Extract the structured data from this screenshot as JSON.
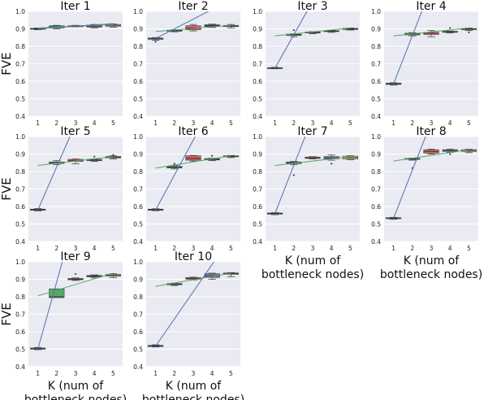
{
  "figure": {
    "ylabel": "FVE",
    "xlabel_line1": "K (num of",
    "xlabel_line2": "bottleneck nodes)"
  },
  "colors": {
    "plot_bg": "#eaeaf2",
    "grid": "#ffffff",
    "linear_fit": "#4c72b0",
    "log_fit": "#55a868",
    "box_blue": "#6a8cc0",
    "box_green": "#55a868",
    "box_red": "#d65f5f",
    "box_purple": "#8172b2",
    "box_gold": "#ccb974",
    "box_cyan": "#64b5cd",
    "median": "#333333"
  },
  "chart_data": [
    {
      "type": "box",
      "title": "Iter 1",
      "categories": [
        "1",
        "2",
        "3",
        "4",
        "5"
      ],
      "ylim": [
        0.4,
        1.0
      ],
      "yticks": [
        "0.4",
        "0.5",
        "0.6",
        "0.7",
        "0.8",
        "0.9",
        "1.0"
      ],
      "boxes": [
        {
          "q1": 0.898,
          "median": 0.9,
          "q3": 0.903,
          "whislo": 0.895,
          "whishi": 0.905,
          "color": "blue"
        },
        {
          "q1": 0.905,
          "median": 0.912,
          "q3": 0.918,
          "whislo": 0.9,
          "whishi": 0.92,
          "color": "green"
        },
        {
          "q1": 0.913,
          "median": 0.915,
          "q3": 0.918,
          "whislo": 0.912,
          "whishi": 0.92,
          "color": "red"
        },
        {
          "q1": 0.91,
          "median": 0.915,
          "q3": 0.922,
          "whislo": 0.905,
          "whishi": 0.925,
          "color": "purple"
        },
        {
          "q1": 0.915,
          "median": 0.92,
          "q3": 0.925,
          "whislo": 0.91,
          "whishi": 0.928,
          "color": "gold"
        }
      ],
      "linear_fit": [
        [
          1,
          0.9
        ],
        [
          5,
          0.93
        ]
      ],
      "log_fit": [
        [
          1,
          0.905
        ],
        [
          5,
          0.925
        ]
      ]
    },
    {
      "type": "box",
      "title": "Iter 2",
      "categories": [
        "1",
        "2",
        "3",
        "4",
        "5"
      ],
      "ylim": [
        0.4,
        1.0
      ],
      "yticks": [
        "0.4",
        "0.5",
        "0.6",
        "0.7",
        "0.8",
        "0.9",
        "1.0"
      ],
      "boxes": [
        {
          "q1": 0.84,
          "median": 0.843,
          "q3": 0.848,
          "whislo": 0.835,
          "whishi": 0.85,
          "color": "blue",
          "outliers": [
            0.826
          ]
        },
        {
          "q1": 0.886,
          "median": 0.89,
          "q3": 0.893,
          "whislo": 0.883,
          "whishi": 0.895,
          "color": "green"
        },
        {
          "q1": 0.895,
          "median": 0.905,
          "q3": 0.918,
          "whislo": 0.888,
          "whishi": 0.925,
          "color": "red"
        },
        {
          "q1": 0.913,
          "median": 0.918,
          "q3": 0.924,
          "whislo": 0.908,
          "whishi": 0.927,
          "color": "purple"
        },
        {
          "q1": 0.913,
          "median": 0.916,
          "q3": 0.92,
          "whislo": 0.905,
          "whishi": 0.925,
          "color": "gold"
        }
      ],
      "linear_fit": [
        [
          1,
          0.845
        ],
        [
          3.8,
          1.0
        ]
      ],
      "log_fit": [
        [
          1,
          0.885
        ],
        [
          5,
          0.92
        ]
      ]
    },
    {
      "type": "box",
      "title": "Iter 3",
      "categories": [
        "1",
        "2",
        "3",
        "4",
        "5"
      ],
      "ylim": [
        0.4,
        1.0
      ],
      "yticks": [
        "0.4",
        "0.5",
        "0.6",
        "0.7",
        "0.8",
        "0.9",
        "1.0"
      ],
      "boxes": [
        {
          "q1": 0.673,
          "median": 0.675,
          "q3": 0.678,
          "whislo": 0.672,
          "whishi": 0.68,
          "color": "blue"
        },
        {
          "q1": 0.862,
          "median": 0.866,
          "q3": 0.87,
          "whislo": 0.855,
          "whishi": 0.872,
          "color": "green",
          "outliers": [
            0.893
          ]
        },
        {
          "q1": 0.876,
          "median": 0.879,
          "q3": 0.882,
          "whislo": 0.872,
          "whishi": 0.884,
          "color": "red"
        },
        {
          "q1": 0.884,
          "median": 0.887,
          "q3": 0.89,
          "whislo": 0.88,
          "whishi": 0.892,
          "color": "purple"
        },
        {
          "q1": 0.896,
          "median": 0.9,
          "q3": 0.903,
          "whislo": 0.893,
          "whishi": 0.905,
          "color": "gold"
        }
      ],
      "linear_fit": [
        [
          1,
          0.675
        ],
        [
          2.7,
          1.0
        ]
      ],
      "log_fit": [
        [
          1,
          0.86
        ],
        [
          5,
          0.905
        ]
      ]
    },
    {
      "type": "box",
      "title": "Iter 4",
      "categories": [
        "1",
        "2",
        "3",
        "4",
        "5"
      ],
      "ylim": [
        0.4,
        1.0
      ],
      "yticks": [
        "0.4",
        "0.5",
        "0.6",
        "0.7",
        "0.8",
        "0.9",
        "1.0"
      ],
      "boxes": [
        {
          "q1": 0.582,
          "median": 0.585,
          "q3": 0.59,
          "whislo": 0.578,
          "whishi": 0.592,
          "color": "blue"
        },
        {
          "q1": 0.865,
          "median": 0.87,
          "q3": 0.875,
          "whislo": 0.86,
          "whishi": 0.878,
          "color": "green"
        },
        {
          "q1": 0.868,
          "median": 0.874,
          "q3": 0.88,
          "whislo": 0.855,
          "whishi": 0.89,
          "color": "red"
        },
        {
          "q1": 0.88,
          "median": 0.883,
          "q3": 0.886,
          "whislo": 0.876,
          "whishi": 0.888,
          "color": "purple",
          "outliers": [
            0.905
          ]
        },
        {
          "q1": 0.895,
          "median": 0.898,
          "q3": 0.902,
          "whislo": 0.89,
          "whishi": 0.905,
          "color": "gold",
          "outliers": [
            0.88
          ]
        }
      ],
      "linear_fit": [
        [
          1,
          0.585
        ],
        [
          2.5,
          1.0
        ]
      ],
      "log_fit": [
        [
          1,
          0.86
        ],
        [
          5,
          0.905
        ]
      ]
    },
    {
      "type": "box",
      "title": "Iter 5",
      "categories": [
        "1",
        "2",
        "3",
        "4",
        "5"
      ],
      "ylim": [
        0.4,
        1.0
      ],
      "yticks": [
        "0.4",
        "0.5",
        "0.6",
        "0.7",
        "0.8",
        "0.9",
        "1.0"
      ],
      "boxes": [
        {
          "q1": 0.578,
          "median": 0.582,
          "q3": 0.585,
          "whislo": 0.575,
          "whishi": 0.588,
          "color": "blue"
        },
        {
          "q1": 0.846,
          "median": 0.85,
          "q3": 0.855,
          "whislo": 0.84,
          "whishi": 0.862,
          "color": "green"
        },
        {
          "q1": 0.858,
          "median": 0.862,
          "q3": 0.87,
          "whislo": 0.845,
          "whishi": 0.872,
          "color": "red"
        },
        {
          "q1": 0.862,
          "median": 0.866,
          "q3": 0.87,
          "whislo": 0.858,
          "whishi": 0.872,
          "color": "purple",
          "outliers": [
            0.885
          ]
        },
        {
          "q1": 0.878,
          "median": 0.882,
          "q3": 0.887,
          "whislo": 0.872,
          "whishi": 0.89,
          "color": "gold",
          "outliers": [
            0.895
          ]
        }
      ],
      "linear_fit": [
        [
          1,
          0.58
        ],
        [
          2.7,
          1.0
        ]
      ],
      "log_fit": [
        [
          1,
          0.835
        ],
        [
          5,
          0.885
        ]
      ]
    },
    {
      "type": "box",
      "title": "Iter 6",
      "categories": [
        "1",
        "2",
        "3",
        "4",
        "5"
      ],
      "ylim": [
        0.4,
        1.0
      ],
      "yticks": [
        "0.4",
        "0.5",
        "0.6",
        "0.7",
        "0.8",
        "0.9",
        "1.0"
      ],
      "boxes": [
        {
          "q1": 0.578,
          "median": 0.582,
          "q3": 0.585,
          "whislo": 0.576,
          "whishi": 0.587,
          "color": "blue"
        },
        {
          "q1": 0.82,
          "median": 0.825,
          "q3": 0.83,
          "whislo": 0.815,
          "whishi": 0.835,
          "color": "green",
          "outliers": [
            0.845
          ]
        },
        {
          "q1": 0.865,
          "median": 0.875,
          "q3": 0.89,
          "whislo": 0.86,
          "whishi": 0.892,
          "color": "red"
        },
        {
          "q1": 0.866,
          "median": 0.87,
          "q3": 0.874,
          "whislo": 0.862,
          "whishi": 0.876,
          "color": "purple",
          "outliers": [
            0.89
          ]
        },
        {
          "q1": 0.884,
          "median": 0.887,
          "q3": 0.89,
          "whislo": 0.88,
          "whishi": 0.892,
          "color": "gold"
        }
      ],
      "linear_fit": [
        [
          1,
          0.58
        ],
        [
          3.1,
          1.0
        ]
      ],
      "log_fit": [
        [
          1,
          0.82
        ],
        [
          5,
          0.89
        ]
      ]
    },
    {
      "type": "box",
      "title": "Iter 7",
      "categories": [
        "1",
        "2",
        "3",
        "4",
        "5"
      ],
      "ylim": [
        0.4,
        1.0
      ],
      "yticks": [
        "0.4",
        "0.5",
        "0.6",
        "0.7",
        "0.8",
        "0.9",
        "1.0"
      ],
      "boxes": [
        {
          "q1": 0.556,
          "median": 0.56,
          "q3": 0.563,
          "whislo": 0.553,
          "whishi": 0.565,
          "color": "blue"
        },
        {
          "q1": 0.845,
          "median": 0.85,
          "q3": 0.855,
          "whislo": 0.84,
          "whishi": 0.858,
          "color": "green",
          "outliers": [
            0.78
          ]
        },
        {
          "q1": 0.875,
          "median": 0.878,
          "q3": 0.883,
          "whislo": 0.872,
          "whishi": 0.885,
          "color": "red"
        },
        {
          "q1": 0.873,
          "median": 0.878,
          "q3": 0.886,
          "whislo": 0.865,
          "whishi": 0.895,
          "color": "purple",
          "outliers": [
            0.845
          ]
        },
        {
          "q1": 0.872,
          "median": 0.88,
          "q3": 0.888,
          "whislo": 0.868,
          "whishi": 0.89,
          "color": "gold"
        }
      ],
      "linear_fit": [
        [
          1,
          0.56
        ],
        [
          2.6,
          1.0
        ]
      ],
      "log_fit": [
        [
          1,
          0.835
        ],
        [
          5,
          0.885
        ]
      ]
    },
    {
      "type": "box",
      "title": "Iter 8",
      "categories": [
        "1",
        "2",
        "3",
        "4",
        "5"
      ],
      "ylim": [
        0.4,
        1.0
      ],
      "yticks": [
        "0.4",
        "0.5",
        "0.6",
        "0.7",
        "0.8",
        "0.9",
        "1.0"
      ],
      "boxes": [
        {
          "q1": 0.53,
          "median": 0.533,
          "q3": 0.536,
          "whislo": 0.527,
          "whishi": 0.538,
          "color": "blue"
        },
        {
          "q1": 0.87,
          "median": 0.872,
          "q3": 0.875,
          "whislo": 0.865,
          "whishi": 0.877,
          "color": "green",
          "outliers": [
            0.82
          ]
        },
        {
          "q1": 0.905,
          "median": 0.915,
          "q3": 0.925,
          "whislo": 0.9,
          "whishi": 0.928,
          "color": "red"
        },
        {
          "q1": 0.915,
          "median": 0.92,
          "q3": 0.925,
          "whislo": 0.91,
          "whishi": 0.928,
          "color": "purple",
          "outliers": [
            0.9
          ]
        },
        {
          "q1": 0.915,
          "median": 0.92,
          "q3": 0.925,
          "whislo": 0.908,
          "whishi": 0.928,
          "color": "gold"
        }
      ],
      "linear_fit": [
        [
          1,
          0.533
        ],
        [
          2.7,
          1.0
        ]
      ],
      "log_fit": [
        [
          1,
          0.86
        ],
        [
          5,
          0.925
        ]
      ]
    },
    {
      "type": "box",
      "title": "Iter 9",
      "categories": [
        "1",
        "2",
        "3",
        "4",
        "5"
      ],
      "ylim": [
        0.4,
        1.0
      ],
      "yticks": [
        "0.4",
        "0.5",
        "0.6",
        "0.7",
        "0.8",
        "0.9",
        "1.0"
      ],
      "xlabel": "K (num of bottleneck nodes)",
      "boxes": [
        {
          "q1": 0.5,
          "median": 0.503,
          "q3": 0.507,
          "whislo": 0.497,
          "whishi": 0.51,
          "color": "blue"
        },
        {
          "q1": 0.795,
          "median": 0.8,
          "q3": 0.845,
          "whislo": 0.795,
          "whishi": 0.845,
          "color": "green"
        },
        {
          "q1": 0.897,
          "median": 0.9,
          "q3": 0.905,
          "whislo": 0.893,
          "whishi": 0.908,
          "color": "red",
          "outliers": [
            0.93
          ]
        },
        {
          "q1": 0.913,
          "median": 0.918,
          "q3": 0.922,
          "whislo": 0.908,
          "whishi": 0.925,
          "color": "purple"
        },
        {
          "q1": 0.918,
          "median": 0.922,
          "q3": 0.928,
          "whislo": 0.91,
          "whishi": 0.932,
          "color": "gold"
        }
      ],
      "linear_fit": [
        [
          1,
          0.5
        ],
        [
          2.3,
          1.0
        ]
      ],
      "log_fit": [
        [
          1,
          0.805
        ],
        [
          5,
          0.935
        ]
      ]
    },
    {
      "type": "box",
      "title": "Iter 10",
      "categories": [
        "1",
        "2",
        "3",
        "4",
        "5"
      ],
      "ylim": [
        0.4,
        1.0
      ],
      "yticks": [
        "0.4",
        "0.5",
        "0.6",
        "0.7",
        "0.8",
        "0.9",
        "1.0"
      ],
      "xlabel": "K (num of bottleneck nodes)",
      "boxes": [
        {
          "q1": 0.515,
          "median": 0.518,
          "q3": 0.522,
          "whislo": 0.513,
          "whishi": 0.525,
          "color": "blue"
        },
        {
          "q1": 0.868,
          "median": 0.872,
          "q3": 0.876,
          "whislo": 0.864,
          "whishi": 0.878,
          "color": "green"
        },
        {
          "q1": 0.9,
          "median": 0.905,
          "q3": 0.91,
          "whislo": 0.896,
          "whishi": 0.912,
          "color": "red"
        },
        {
          "q1": 0.91,
          "median": 0.92,
          "q3": 0.932,
          "whislo": 0.9,
          "whishi": 0.935,
          "color": "purple"
        },
        {
          "q1": 0.928,
          "median": 0.932,
          "q3": 0.936,
          "whislo": 0.915,
          "whishi": 0.938,
          "color": "gold"
        }
      ],
      "linear_fit": [
        [
          1,
          0.518
        ],
        [
          4.1,
          1.0
        ]
      ],
      "log_fit": [
        [
          1,
          0.86
        ],
        [
          5,
          0.935
        ]
      ]
    }
  ]
}
